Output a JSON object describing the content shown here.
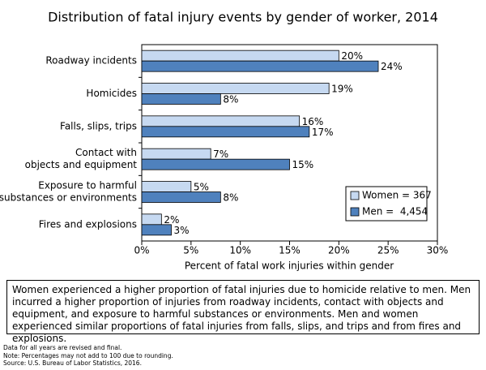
{
  "chart_data": {
    "type": "bar",
    "orientation": "horizontal",
    "title": "Distribution of fatal injury events by gender of worker, 2014",
    "categories": [
      [
        "Roadway incidents"
      ],
      [
        "Homicides"
      ],
      [
        "Falls, slips, trips"
      ],
      [
        "Contact with",
        "objects and equipment"
      ],
      [
        "Exposure to harmful",
        "substances or environments"
      ],
      [
        "Fires and explosions"
      ]
    ],
    "series": [
      {
        "name": "Women = 367",
        "color": "#c6d9f1",
        "values": [
          20,
          19,
          16,
          7,
          5,
          2
        ],
        "value_labels": [
          "20%",
          "19%",
          "16%",
          "7%",
          "5%",
          "2%"
        ]
      },
      {
        "name": "Men =  4,454",
        "color": "#4f81bd",
        "values": [
          24,
          8,
          17,
          15,
          8,
          3
        ],
        "value_labels": [
          "24%",
          "8%",
          "17%",
          "15%",
          "8%",
          "3%"
        ]
      }
    ],
    "xlabel": "Percent of fatal work injuries within gender",
    "xlim": [
      0,
      30
    ],
    "xticks": [
      {
        "value": 0,
        "label": "0%"
      },
      {
        "value": 5,
        "label": "5%"
      },
      {
        "value": 10,
        "label": "10%"
      },
      {
        "value": 15,
        "label": "15%"
      },
      {
        "value": 20,
        "label": "20%"
      },
      {
        "value": 25,
        "label": "25%"
      },
      {
        "value": 30,
        "label": "30%"
      }
    ],
    "legend": "lower right",
    "grid": false
  },
  "note": "Women experienced a higher proportion of fatal injuries due to homicide relative to men. Men incurred a higher proportion of injuries from roadway incidents, contact with objects and equipment, and exposure to harmful substances or environments. Men and women experienced similar proportions of fatal injuries from falls, slips, and trips and from fires and explosions.",
  "footnotes": [
    "Data for all years are revised and final.",
    "Note: Percentages may not add to 100 due to rounding.",
    "Source: U.S. Bureau of Labor Statistics, 2016."
  ]
}
